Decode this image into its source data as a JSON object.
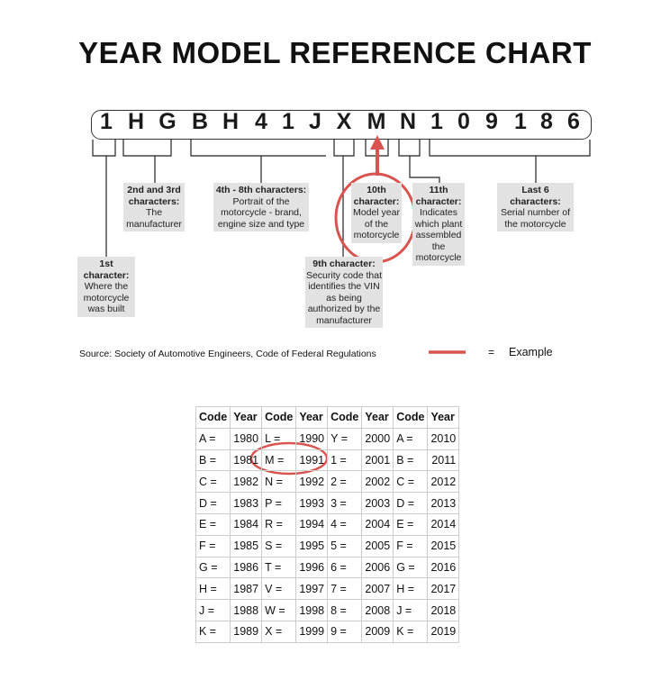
{
  "title": "YEAR MODEL REFERENCE CHART",
  "vin": [
    "1",
    "H",
    "G",
    "B",
    "H",
    "4",
    "1",
    "J",
    "X",
    "M",
    "N",
    "1",
    "0",
    "9",
    "1",
    "8",
    "6"
  ],
  "labels": {
    "first": {
      "head": "1st character:",
      "body": "Where the motorcycle was built"
    },
    "second": {
      "head": "2nd and 3rd characters:",
      "body": "The manufacturer"
    },
    "fourth": {
      "head": "4th - 8th characters:",
      "body": "Portrait of the motorcycle - brand, engine size and type"
    },
    "ninth": {
      "head": "9th character:",
      "body": "Security code that identifies the VIN as being authorized by the manufacturer"
    },
    "tenth": {
      "head": "10th character:",
      "body": "Model year of the motorcycle"
    },
    "eleventh": {
      "head": "11th character:",
      "body": "Indicates which plant assembled the motorcycle"
    },
    "last": {
      "head": "Last 6 characters:",
      "body": "Serial number of the motorcycle"
    }
  },
  "source": "Source:  Society of Automotive Engineers, Code of Federal Regulations",
  "legend": {
    "eq": "=",
    "label": "Example",
    "color": "#d9534f"
  },
  "table": {
    "headers": [
      "Code",
      "Year",
      "Code",
      "Year",
      "Code",
      "Year",
      "Code",
      "Year"
    ],
    "rows": [
      [
        "A =",
        "1980",
        "L =",
        "1990",
        "Y =",
        "2000",
        "A =",
        "2010"
      ],
      [
        "B =",
        "1981",
        "M =",
        "1991",
        "1 =",
        "2001",
        "B =",
        "2011"
      ],
      [
        "C =",
        "1982",
        "N =",
        "1992",
        "2 =",
        "2002",
        "C =",
        "2012"
      ],
      [
        "D =",
        "1983",
        "P =",
        "1993",
        "3 =",
        "2003",
        "D =",
        "2013"
      ],
      [
        "E =",
        "1984",
        "R =",
        "1994",
        "4 =",
        "2004",
        "E =",
        "2014"
      ],
      [
        "F =",
        "1985",
        "S =",
        "1995",
        "5 =",
        "2005",
        "F =",
        "2015"
      ],
      [
        "G =",
        "1986",
        "T =",
        "1996",
        "6 =",
        "2006",
        "G =",
        "2016"
      ],
      [
        "H =",
        "1987",
        "V =",
        "1997",
        "7 =",
        "2007",
        "H =",
        "2017"
      ],
      [
        "J =",
        "1988",
        "W =",
        "1998",
        "8 =",
        "2008",
        "J =",
        "2018"
      ],
      [
        "K =",
        "1989",
        "X =",
        "1999",
        "9 =",
        "2009",
        "K =",
        "2019"
      ]
    ]
  }
}
